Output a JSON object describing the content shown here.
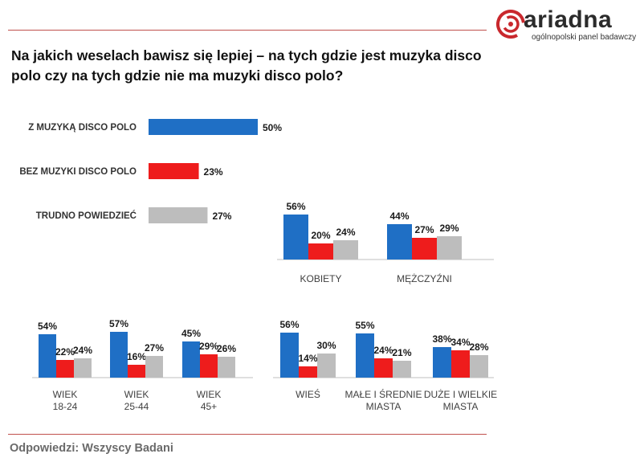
{
  "logo": {
    "name": "ariadna",
    "tagline": "ogólnopolski panel badawczy",
    "accent": "#c9282d"
  },
  "title": "Na jakich weselach bawisz się lepiej – na tych gdzie jest muzyka disco polo czy na tych gdzie nie ma muzyki disco polo?",
  "footer": "Odpowiedzi: Wszyscy Badani",
  "chart_data": [
    {
      "type": "bar",
      "orientation": "horizontal",
      "name": "total",
      "categories": [
        "Z MUZYKĄ DISCO POLO",
        "BEZ MUZYKI DISCO POLO",
        "TRUDNO POWIEDZIEĆ"
      ],
      "values": [
        50,
        23,
        27
      ],
      "value_suffix": "%",
      "colors": [
        "#1f6fc5",
        "#ee1c1c",
        "#bdbdbd"
      ]
    },
    {
      "type": "bar",
      "name": "gender",
      "series_colors": [
        "#1f6fc5",
        "#ee1c1c",
        "#bdbdbd"
      ],
      "groups": [
        {
          "label": "KOBIETY",
          "values": [
            56,
            20,
            24
          ]
        },
        {
          "label": "MĘŻCZYŹNI",
          "values": [
            44,
            27,
            29
          ]
        }
      ]
    },
    {
      "type": "bar",
      "name": "age",
      "series_colors": [
        "#1f6fc5",
        "#ee1c1c",
        "#bdbdbd"
      ],
      "groups": [
        {
          "label": "WIEK\n18-24",
          "values": [
            54,
            22,
            24
          ]
        },
        {
          "label": "WIEK\n25-44",
          "values": [
            57,
            16,
            27
          ]
        },
        {
          "label": "WIEK\n45+",
          "values": [
            45,
            29,
            26
          ]
        }
      ]
    },
    {
      "type": "bar",
      "name": "place",
      "series_colors": [
        "#1f6fc5",
        "#ee1c1c",
        "#bdbdbd"
      ],
      "groups": [
        {
          "label": "WIEŚ",
          "values": [
            56,
            14,
            30
          ]
        },
        {
          "label": "MAŁE I ŚREDNIE\nMIASTA",
          "values": [
            55,
            24,
            21
          ]
        },
        {
          "label": "DUŻE I WIELKIE\nMIASTA",
          "values": [
            38,
            34,
            28
          ]
        }
      ]
    }
  ]
}
